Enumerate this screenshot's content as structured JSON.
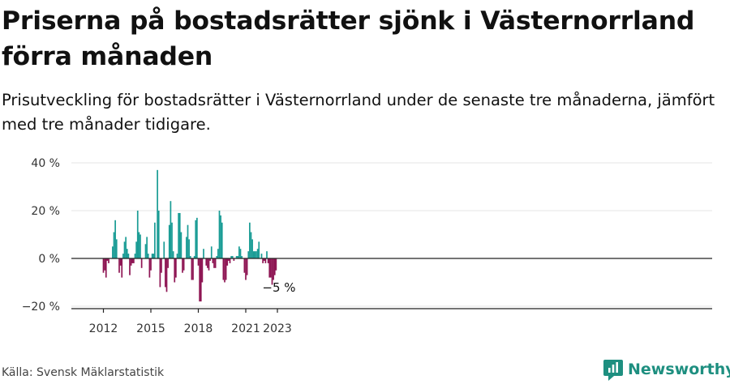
{
  "title": "Priserna på bostadsrätter sjönk i Västernorrland förra månaden",
  "subtitle": "Prisutveckling för bostadsrätter i Västernorrland under de senaste tre månaderna, jämfört med tre månader tidigare.",
  "source": "Källa: Svensk Mäklarstatistik",
  "brand": "Newsworthy",
  "colors": {
    "positive": "#1a9c95",
    "negative": "#8e1553",
    "axis": "#222222",
    "grid": "#e4e4e4",
    "brand": "#1e8f80"
  },
  "chart_data": {
    "type": "bar",
    "x_start": "2012-01",
    "frequency": "monthly",
    "ylim": [
      -20,
      40
    ],
    "yticks": [
      -20,
      0,
      20,
      40
    ],
    "ytick_labels": [
      "−20 %",
      "0 %",
      "20 %",
      "40 %"
    ],
    "xticks": [
      "2012-01",
      "2015-01",
      "2018-01",
      "2021-01",
      "2023-01"
    ],
    "xtick_labels": [
      "2012",
      "2015",
      "2018",
      "2021",
      "2023"
    ],
    "annotation": {
      "x": "2023-01",
      "label": "−5 %"
    },
    "grid": "horizontal",
    "values": [
      -6,
      -5,
      -8,
      -1,
      -2,
      0,
      0,
      5,
      11,
      16,
      8,
      0,
      -6,
      -3,
      -8,
      2,
      7,
      9,
      4,
      2,
      -7,
      -3,
      -2,
      -2,
      2,
      7,
      20,
      11,
      10,
      -4,
      0,
      0,
      6,
      9,
      2,
      -8,
      -5,
      2,
      2,
      15,
      0,
      37,
      20,
      -12,
      -6,
      0,
      7,
      -12,
      -14,
      -4,
      14,
      24,
      15,
      3,
      -10,
      -8,
      2,
      19,
      19,
      11,
      -6,
      -5,
      0,
      9,
      14,
      8,
      1,
      -9,
      -9,
      1,
      16,
      17,
      -3,
      -18,
      -18,
      -10,
      4,
      0,
      -3,
      -4,
      -5,
      -1,
      5,
      -2,
      -4,
      -4,
      1,
      4,
      20,
      18,
      15,
      -9,
      -10,
      -9,
      -3,
      -1,
      -2,
      1,
      1,
      -1,
      0,
      1,
      1,
      5,
      4,
      1,
      0,
      -6,
      -9,
      -7,
      3,
      15,
      11,
      8,
      3,
      3,
      3,
      4,
      7,
      0,
      2,
      -2,
      -1,
      -2,
      3,
      -2,
      -8,
      -8,
      -11,
      -9,
      -7,
      -5
    ]
  }
}
